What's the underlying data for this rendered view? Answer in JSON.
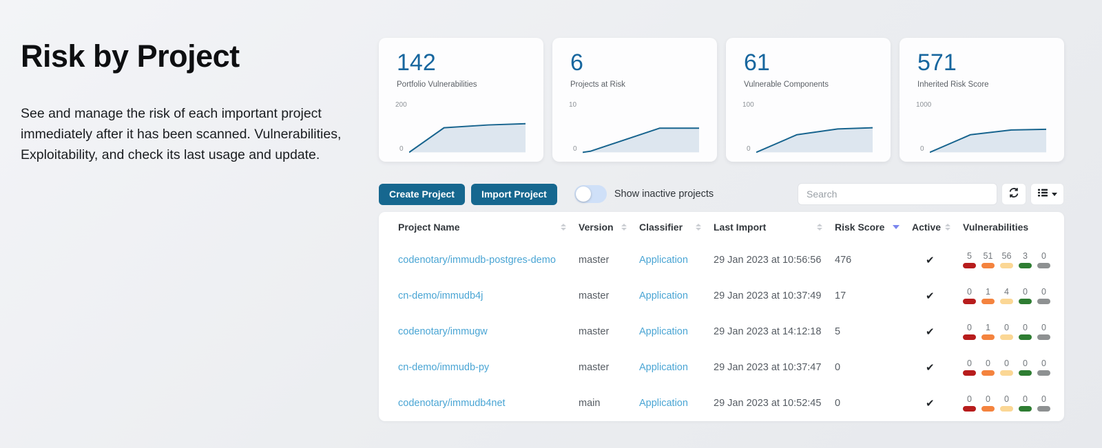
{
  "hero": {
    "title": "Risk by Project",
    "description": "See and manage the risk of each important project immediately after it has been scanned. Vulnerabilities, Exploitability, and check its last usage and update."
  },
  "cards": [
    {
      "value": "142",
      "label": "Portfolio Vulnerabilities",
      "ymax_label": "200",
      "ymin_label": "0"
    },
    {
      "value": "6",
      "label": "Projects at Risk",
      "ymax_label": "10",
      "ymin_label": "0"
    },
    {
      "value": "61",
      "label": "Vulnerable Components",
      "ymax_label": "100",
      "ymin_label": "0"
    },
    {
      "value": "571",
      "label": "Inherited Risk Score",
      "ymax_label": "1000",
      "ymin_label": "0"
    }
  ],
  "chart_data": [
    {
      "type": "area",
      "title": "Portfolio Vulnerabilities",
      "current_value": 142,
      "ylim": [
        0,
        200
      ],
      "x": [
        0,
        0.3,
        0.68,
        1
      ],
      "y": [
        0,
        122,
        136,
        142
      ]
    },
    {
      "type": "area",
      "title": "Projects at Risk",
      "current_value": 6,
      "ylim": [
        0,
        10
      ],
      "x": [
        0,
        0.07,
        0.66,
        1
      ],
      "y": [
        0,
        0.3,
        6,
        6
      ]
    },
    {
      "type": "area",
      "title": "Vulnerable Components",
      "current_value": 61,
      "ylim": [
        0,
        100
      ],
      "x": [
        0,
        0.35,
        0.7,
        1
      ],
      "y": [
        0,
        44,
        58,
        61
      ]
    },
    {
      "type": "area",
      "title": "Inherited Risk Score",
      "current_value": 571,
      "ylim": [
        0,
        1000
      ],
      "x": [
        0,
        0.35,
        0.7,
        1
      ],
      "y": [
        0,
        440,
        555,
        571
      ]
    }
  ],
  "toolbar": {
    "create_label": "Create Project",
    "import_label": "Import Project",
    "toggle_label": "Show inactive projects",
    "toggle_on": false,
    "search_placeholder": "Search"
  },
  "table": {
    "columns": [
      {
        "label": "Project Name",
        "sortable": true,
        "sorted": null
      },
      {
        "label": "Version",
        "sortable": true,
        "sorted": null
      },
      {
        "label": "Classifier",
        "sortable": true,
        "sorted": null
      },
      {
        "label": "Last Import",
        "sortable": true,
        "sorted": null
      },
      {
        "label": "Risk Score",
        "sortable": true,
        "sorted": "desc"
      },
      {
        "label": "Active",
        "sortable": true,
        "sorted": null
      },
      {
        "label": "Vulnerabilities",
        "sortable": false,
        "sorted": null
      }
    ],
    "rows": [
      {
        "project": "codenotary/immudb-postgres-demo",
        "version": "master",
        "classifier": "Application",
        "last_import": "29 Jan 2023 at 10:56:56",
        "risk_score": "476",
        "active": true,
        "vulns": [
          5,
          51,
          56,
          3,
          0
        ]
      },
      {
        "project": "cn-demo/immudb4j",
        "version": "master",
        "classifier": "Application",
        "last_import": "29 Jan 2023 at 10:37:49",
        "risk_score": "17",
        "active": true,
        "vulns": [
          0,
          1,
          4,
          0,
          0
        ]
      },
      {
        "project": "codenotary/immugw",
        "version": "master",
        "classifier": "Application",
        "last_import": "29 Jan 2023 at 14:12:18",
        "risk_score": "5",
        "active": true,
        "vulns": [
          0,
          1,
          0,
          0,
          0
        ]
      },
      {
        "project": "cn-demo/immudb-py",
        "version": "master",
        "classifier": "Application",
        "last_import": "29 Jan 2023 at 10:37:47",
        "risk_score": "0",
        "active": true,
        "vulns": [
          0,
          0,
          0,
          0,
          0
        ]
      },
      {
        "project": "codenotary/immudb4net",
        "version": "main",
        "classifier": "Application",
        "last_import": "29 Jan 2023 at 10:52:45",
        "risk_score": "0",
        "active": true,
        "vulns": [
          0,
          0,
          0,
          0,
          0
        ]
      }
    ],
    "active_check_glyph": "✔",
    "severity_order": [
      "critical",
      "high",
      "medium",
      "low",
      "unassigned"
    ]
  },
  "colors": {
    "accent_button": "#16678f",
    "link": "#4aa5d4",
    "stat_number": "#17669e",
    "spark_line": "#17648e",
    "spark_fill": "#dde6ef",
    "sort_active": "#7a86ee",
    "severity": {
      "critical": "#b71c1c",
      "high": "#f4833e",
      "medium": "#fbd795",
      "low": "#2e7d32",
      "unassigned": "#8e9192"
    }
  }
}
